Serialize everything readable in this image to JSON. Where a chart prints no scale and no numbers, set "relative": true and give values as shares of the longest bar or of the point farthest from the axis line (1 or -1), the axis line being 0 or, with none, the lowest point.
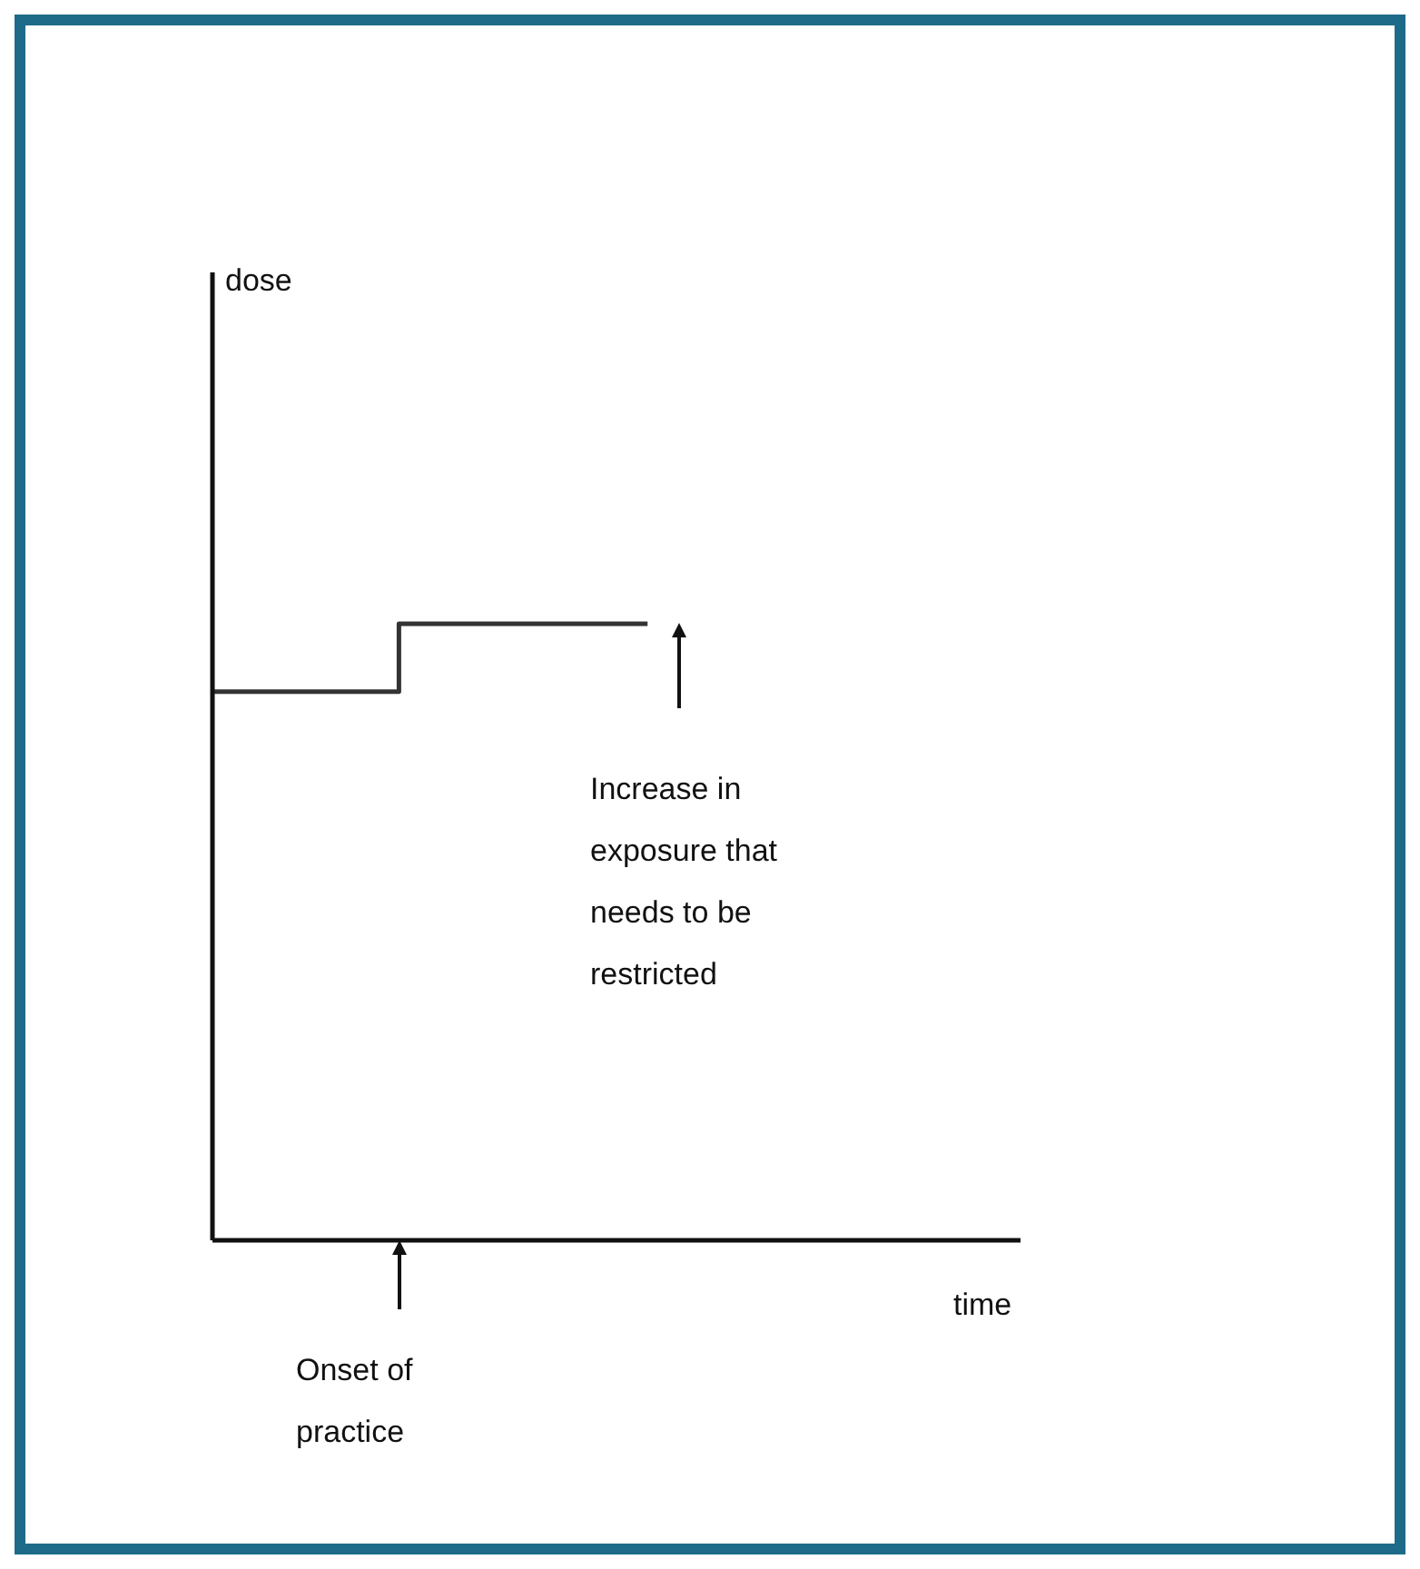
{
  "chart_data": {
    "type": "step",
    "xlabel": "time",
    "relative": true,
    "categories": [
      null,
      null,
      null,
      null,
      null,
      null,
      null,
      null,
      null,
      null,
      null,
      null,
      null,
      null
    ],
    "series": [
      {
        "color": "#333333",
        "values": [
          0.89,
          0.89,
          0.89,
          1,
          1,
          1,
          1,
          1,
          null,
          null,
          null,
          null,
          null,
          null
        ]
      }
    ],
    "marker": "none",
    "line_style": "solid",
    "annotations": [
      "dose",
      "Increase in exposure that needs to be restricted",
      "Onset of practice"
    ]
  }
}
